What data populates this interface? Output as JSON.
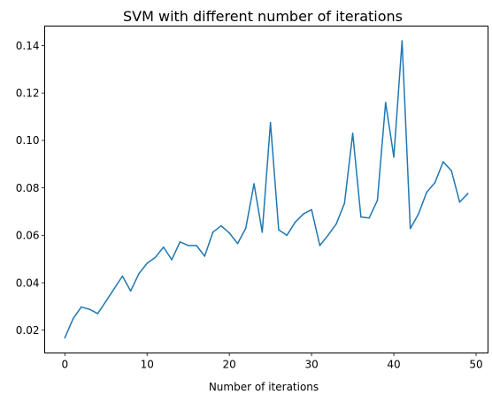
{
  "chart_data": {
    "type": "line",
    "title": "SVM with different number of iterations",
    "xlabel": "Number of iterations",
    "ylabel": "",
    "xlim": [
      -2.45,
      51.45
    ],
    "ylim": [
      0.0104,
      0.1482
    ],
    "xticks": [
      0,
      10,
      20,
      30,
      40,
      50
    ],
    "xtick_labels": [
      "0",
      "10",
      "20",
      "30",
      "40",
      "50"
    ],
    "yticks": [
      0.02,
      0.04,
      0.06,
      0.08,
      0.1,
      0.12,
      0.14
    ],
    "ytick_labels": [
      "0.02",
      "0.04",
      "0.06",
      "0.08",
      "0.10",
      "0.12",
      "0.14"
    ],
    "grid": false,
    "line_color": "#1f77b4",
    "x": [
      0,
      1,
      2,
      3,
      4,
      5,
      6,
      7,
      8,
      9,
      10,
      11,
      12,
      13,
      14,
      15,
      16,
      17,
      18,
      19,
      20,
      21,
      22,
      23,
      24,
      25,
      26,
      27,
      28,
      29,
      30,
      31,
      32,
      33,
      34,
      35,
      36,
      37,
      38,
      39,
      40,
      41,
      42,
      43,
      44,
      45,
      46,
      47,
      48,
      49
    ],
    "y": [
      0.0168,
      0.0248,
      0.0298,
      0.0288,
      0.027,
      0.0322,
      0.0375,
      0.0428,
      0.0365,
      0.0438,
      0.0482,
      0.0507,
      0.055,
      0.0497,
      0.0572,
      0.0557,
      0.0557,
      0.0512,
      0.0613,
      0.064,
      0.061,
      0.0565,
      0.063,
      0.0817,
      0.0613,
      0.1075,
      0.0623,
      0.06,
      0.0655,
      0.069,
      0.0708,
      0.0557,
      0.06,
      0.0648,
      0.0735,
      0.103,
      0.0677,
      0.0673,
      0.0747,
      0.116,
      0.093,
      0.142,
      0.0628,
      0.069,
      0.0782,
      0.0822,
      0.091,
      0.0872,
      0.074,
      0.0776
    ]
  }
}
